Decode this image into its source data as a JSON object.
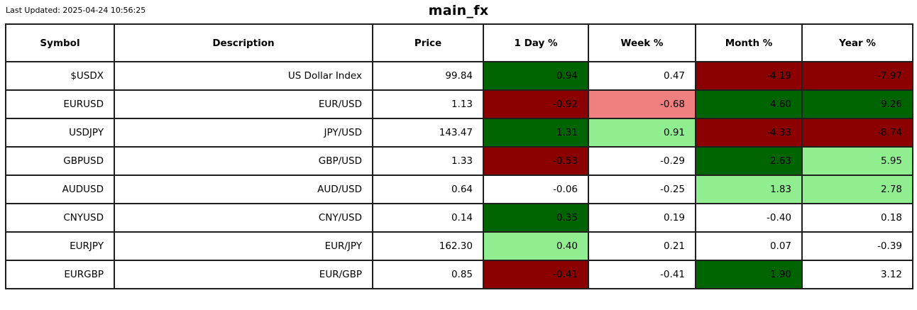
{
  "page": {
    "last_updated": "Last Updated: 2025-04-24 10:56:25",
    "title": "main_fx"
  },
  "colors": {
    "dark_green": "#006400",
    "light_green": "#90EE90",
    "dark_red": "#8B0000",
    "light_red": "#F08080",
    "none": "#FFFFFF"
  },
  "table": {
    "columns": [
      "Symbol",
      "Description",
      "Price",
      "1 Day %",
      "Week %",
      "Month %",
      "Year %"
    ],
    "rows": [
      {
        "symbol": "$USDX",
        "description": "US Dollar Index",
        "price": "99.84",
        "cells": [
          {
            "value": "0.94",
            "bg": "dark_green"
          },
          {
            "value": "0.47",
            "bg": "none"
          },
          {
            "value": "-4.19",
            "bg": "dark_red"
          },
          {
            "value": "-7.97",
            "bg": "dark_red"
          }
        ]
      },
      {
        "symbol": "EURUSD",
        "description": "EUR/USD",
        "price": "1.13",
        "cells": [
          {
            "value": "-0.92",
            "bg": "dark_red"
          },
          {
            "value": "-0.68",
            "bg": "light_red"
          },
          {
            "value": "4.60",
            "bg": "dark_green"
          },
          {
            "value": "9.26",
            "bg": "dark_green"
          }
        ]
      },
      {
        "symbol": "USDJPY",
        "description": "JPY/USD",
        "price": "143.47",
        "cells": [
          {
            "value": "1.31",
            "bg": "dark_green"
          },
          {
            "value": "0.91",
            "bg": "light_green"
          },
          {
            "value": "-4.33",
            "bg": "dark_red"
          },
          {
            "value": "-8.74",
            "bg": "dark_red"
          }
        ]
      },
      {
        "symbol": "GBPUSD",
        "description": "GBP/USD",
        "price": "1.33",
        "cells": [
          {
            "value": "-0.53",
            "bg": "dark_red"
          },
          {
            "value": "-0.29",
            "bg": "none"
          },
          {
            "value": "2.63",
            "bg": "dark_green"
          },
          {
            "value": "5.95",
            "bg": "light_green"
          }
        ]
      },
      {
        "symbol": "AUDUSD",
        "description": "AUD/USD",
        "price": "0.64",
        "cells": [
          {
            "value": "-0.06",
            "bg": "none"
          },
          {
            "value": "-0.25",
            "bg": "none"
          },
          {
            "value": "1.83",
            "bg": "light_green"
          },
          {
            "value": "2.78",
            "bg": "light_green"
          }
        ]
      },
      {
        "symbol": "CNYUSD",
        "description": "CNY/USD",
        "price": "0.14",
        "cells": [
          {
            "value": "0.35",
            "bg": "dark_green"
          },
          {
            "value": "0.19",
            "bg": "none"
          },
          {
            "value": "-0.40",
            "bg": "none"
          },
          {
            "value": "0.18",
            "bg": "none"
          }
        ]
      },
      {
        "symbol": "EURJPY",
        "description": "EUR/JPY",
        "price": "162.30",
        "cells": [
          {
            "value": "0.40",
            "bg": "light_green"
          },
          {
            "value": "0.21",
            "bg": "none"
          },
          {
            "value": "0.07",
            "bg": "none"
          },
          {
            "value": "-0.39",
            "bg": "none"
          }
        ]
      },
      {
        "symbol": "EURGBP",
        "description": "EUR/GBP",
        "price": "0.85",
        "cells": [
          {
            "value": "-0.41",
            "bg": "dark_red"
          },
          {
            "value": "-0.41",
            "bg": "none"
          },
          {
            "value": "1.90",
            "bg": "dark_green"
          },
          {
            "value": "3.12",
            "bg": "none"
          }
        ]
      }
    ]
  }
}
